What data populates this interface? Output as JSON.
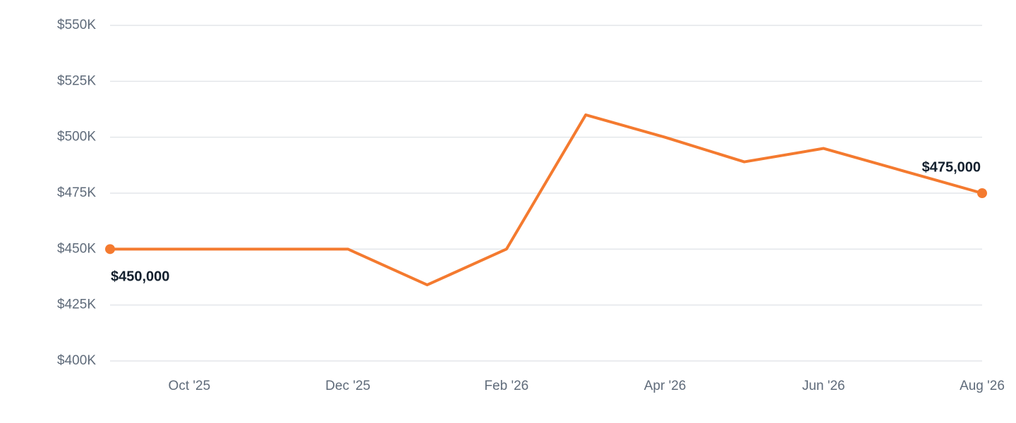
{
  "chart_data": {
    "type": "line",
    "categories": [
      null,
      "Oct '25",
      null,
      "Dec '25",
      null,
      "Feb '26",
      null,
      "Apr '26",
      null,
      "Jun '26",
      null,
      "Aug '26"
    ],
    "series": [
      {
        "color": "#f47a2f",
        "values": [
          450000,
          450000,
          450000,
          450000,
          434000,
          450000,
          510000,
          500000,
          489000,
          495000,
          485000,
          475000
        ],
        "value_labels": [
          "$450,000",
          null,
          null,
          null,
          null,
          null,
          null,
          null,
          null,
          null,
          null,
          "$475,000"
        ]
      }
    ],
    "ylim": [
      400000,
      550000
    ],
    "yticks": [
      {
        "value": 400000,
        "label": "$400K"
      },
      {
        "value": 425000,
        "label": "$425K"
      },
      {
        "value": 450000,
        "label": "$450K"
      },
      {
        "value": 475000,
        "label": "$475K"
      },
      {
        "value": 500000,
        "label": "$500K"
      },
      {
        "value": 525000,
        "label": "$525K"
      },
      {
        "value": 550000,
        "label": "$550K"
      }
    ],
    "grid": true
  }
}
